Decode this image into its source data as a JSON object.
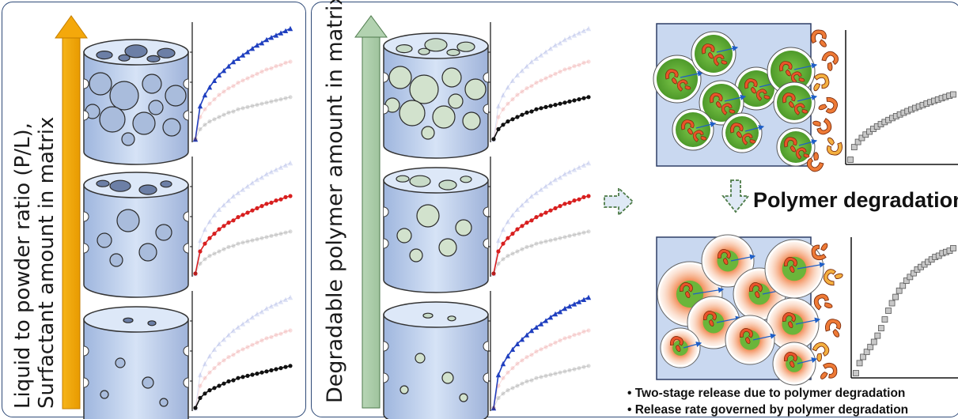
{
  "left_panel": {
    "axis_label_line1": "Liquid to powder ratio (P/L),",
    "axis_label_line2": "Surfactant amount in matrix",
    "arrow_color": "#f4a80b",
    "pore_levels": [
      "high",
      "medium",
      "low"
    ],
    "highlight_series": [
      "blue",
      "red",
      "black"
    ]
  },
  "middle_panel": {
    "axis_label": "Degradable polymer amount in matrix",
    "arrow_color": "#a6c8a6",
    "highlight_series": [
      "black",
      "red",
      "blue"
    ]
  },
  "right_panel": {
    "title": "Polymer degradation",
    "bullets": [
      "• Two-stage release due to polymer degradation",
      "• Release rate governed by polymer degradation"
    ],
    "arrow_icon": "dashed-arrow-icon"
  },
  "chart_data": [
    {
      "type": "line",
      "title": "",
      "xlabel": "",
      "ylabel": "",
      "series": [
        {
          "color": "#1f3fbf",
          "values": [
            0,
            0.3,
            0.4,
            0.47,
            0.53,
            0.58,
            0.62,
            0.66,
            0.7,
            0.73,
            0.76,
            0.79,
            0.82,
            0.85,
            0.87,
            0.9,
            0.92,
            0.94,
            0.96,
            0.98,
            1.0
          ]
        },
        {
          "color": "#d81f1f",
          "values": [
            0,
            0.2,
            0.27,
            0.32,
            0.36,
            0.4,
            0.43,
            0.46,
            0.48,
            0.51,
            0.53,
            0.55,
            0.57,
            0.59,
            0.61,
            0.63,
            0.64,
            0.66,
            0.67,
            0.69,
            0.7
          ]
        },
        {
          "color": "#111111",
          "values": [
            0,
            0.09,
            0.13,
            0.16,
            0.18,
            0.2,
            0.22,
            0.24,
            0.25,
            0.27,
            0.28,
            0.29,
            0.3,
            0.31,
            0.32,
            0.33,
            0.34,
            0.35,
            0.36,
            0.37,
            0.38
          ]
        }
      ]
    },
    {
      "type": "line",
      "title": "",
      "xlabel": "",
      "ylabel": "",
      "series": [
        {
          "color": "#888888",
          "values": [
            0,
            0.08,
            0.13,
            0.17,
            0.21,
            0.25,
            0.3,
            0.36,
            0.43,
            0.5,
            0.56,
            0.61,
            0.66,
            0.7,
            0.74,
            0.77,
            0.8,
            0.83,
            0.85,
            0.87,
            0.89,
            0.91,
            0.93,
            0.94,
            0.96,
            0.97,
            0.98,
            1.0
          ]
        }
      ]
    }
  ]
}
